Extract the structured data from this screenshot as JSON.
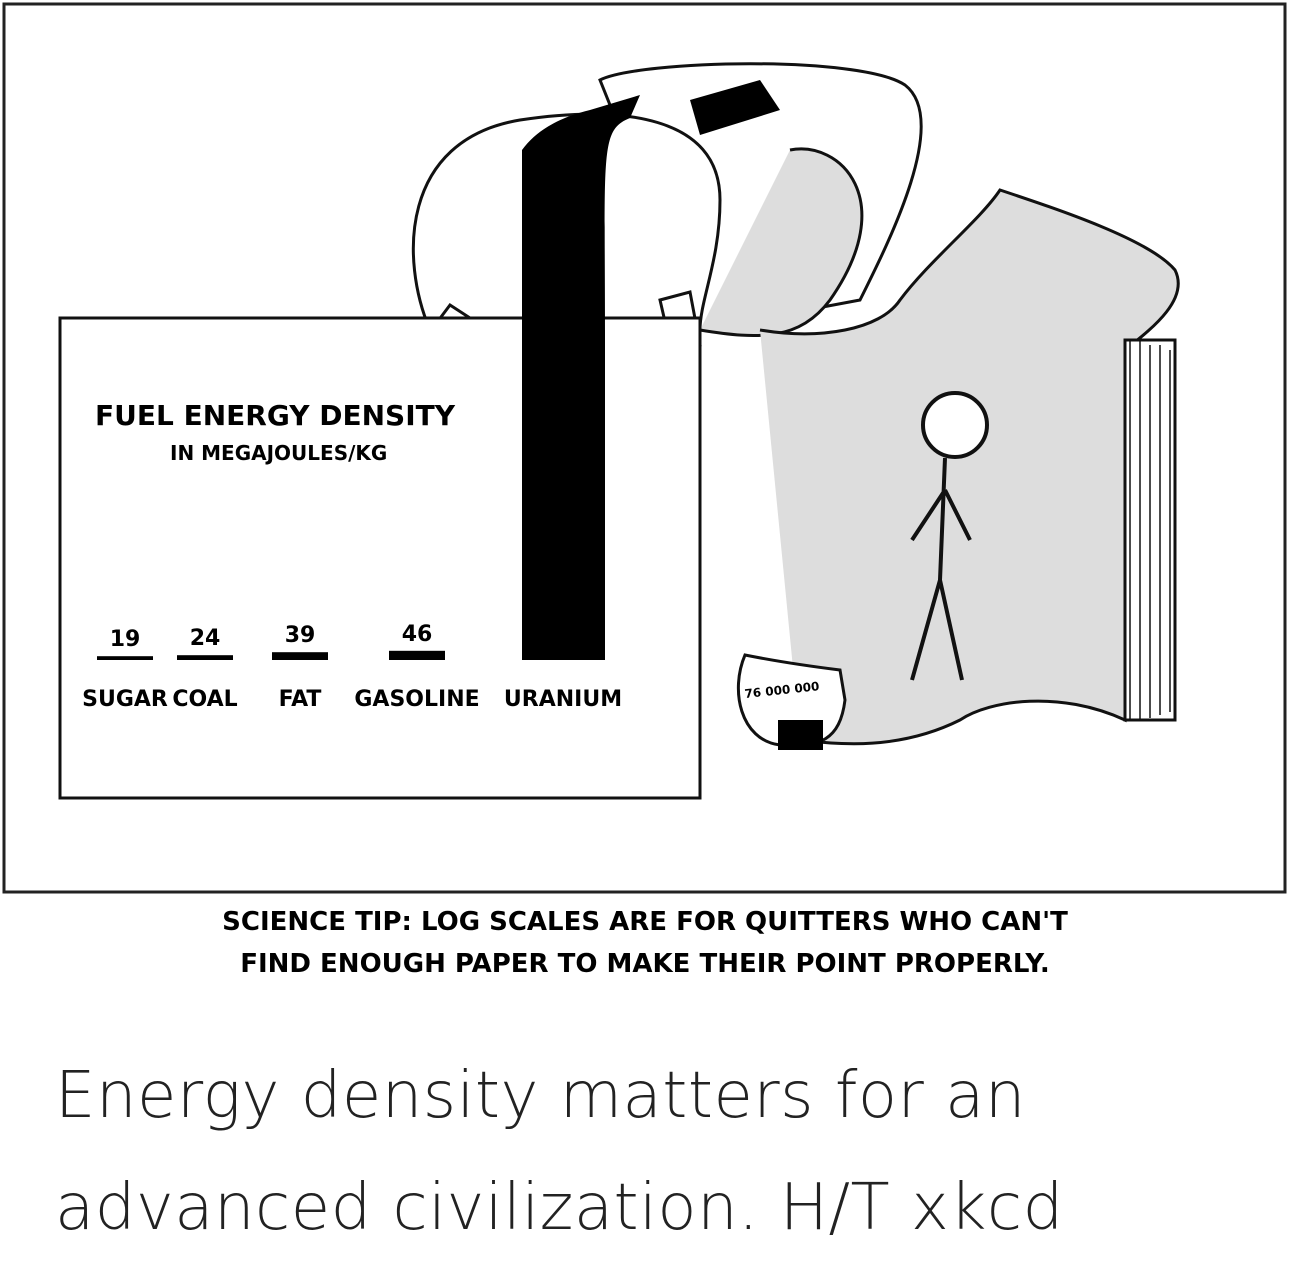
{
  "chart_data": {
    "type": "bar",
    "title": "FUEL ENERGY DENSITY",
    "subtitle": "IN MEGAJOULES/KG",
    "categories": [
      "SUGAR",
      "COAL",
      "FAT",
      "GASOLINE",
      "URANIUM"
    ],
    "values": [
      19,
      24,
      39,
      46,
      76000000
    ],
    "value_labels": [
      "19",
      "24",
      "39",
      "46",
      "76 000 000"
    ],
    "bar_color": "#000000"
  },
  "comic": {
    "science_tip_line1": "SCIENCE TIP: LOG SCALES ARE FOR QUITTERS WHO CAN'T",
    "science_tip_line2": "FIND ENOUGH PAPER TO MAKE THEIR POINT PROPERLY."
  },
  "caption": {
    "line1": "Energy density matters for an",
    "line2": "advanced civilization. H/T xkcd"
  }
}
